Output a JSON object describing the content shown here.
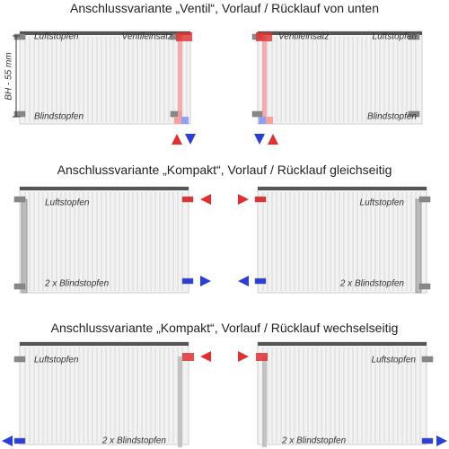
{
  "sections": [
    {
      "title": "Anschlussvariante „Ventil“, Vorlauf / Rücklauf von unten",
      "left": {
        "top_left": "Luftstopfen",
        "top_right": "Ventileinsatz",
        "bottom": "Blindstopfen",
        "dimension": "BH - 55 mm"
      },
      "right": {
        "top_left": "Ventileinsatz",
        "top_right": "Luftstopfen",
        "bottom": "Blindstopfen"
      }
    },
    {
      "title": "Anschlussvariante „Kompakt“, Vorlauf / Rücklauf gleichseitig",
      "left": {
        "top": "Luftstopfen",
        "bottom": "2 x Blindstopfen"
      },
      "right": {
        "top": "Luftstopfen",
        "bottom": "2 x Blindstopfen"
      }
    },
    {
      "title": "Anschlussvariante „Kompakt“, Vorlauf / Rücklauf wechselseitig",
      "left": {
        "top": "Luftstopfen",
        "bottom": "2 x Blindstopfen"
      },
      "right": {
        "top": "Luftstopfen",
        "bottom": "2 x Blindstopfen"
      }
    }
  ]
}
